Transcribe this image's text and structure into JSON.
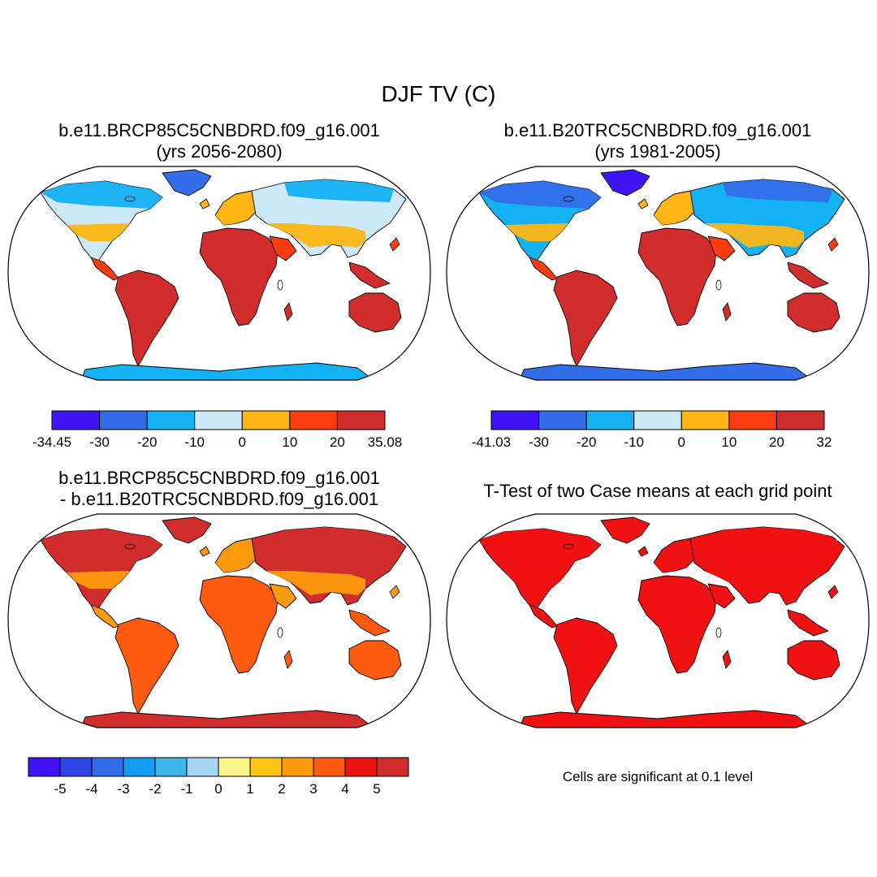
{
  "title": "DJF TV (C)",
  "panels": [
    {
      "id": "p1",
      "title_line1": "b.e11.BRCP85C5CNBDRD.f09_g16.001",
      "title_line2": "(yrs 2056-2080)",
      "colorbar": {
        "colors": [
          "#3f13f5",
          "#336ee8",
          "#14b1f3",
          "#cde9f7",
          "#fdb614",
          "#fd3d0f",
          "#d22d2d"
        ],
        "labels": [
          "-34.45",
          "-30",
          "-20",
          "-10",
          "0",
          "10",
          "20",
          "35.08"
        ],
        "label_mode": "edges"
      },
      "palette": {
        "land_warm": "#d22d2d",
        "tropics": "#fd3d0f",
        "mid": "#fdb614",
        "cold": "#cde9f7",
        "colder": "#14b1f3",
        "coldest": "#336ee8"
      }
    },
    {
      "id": "p2",
      "title_line1": "b.e11.B20TRC5CNBDRD.f09_g16.001",
      "title_line2": "(yrs 1981-2005)",
      "colorbar": {
        "colors": [
          "#3f13f5",
          "#336ee8",
          "#14b1f3",
          "#cde9f7",
          "#fdb614",
          "#fd3d0f",
          "#d22d2d"
        ],
        "labels": [
          "-41.03",
          "-30",
          "-20",
          "-10",
          "0",
          "10",
          "20",
          "32"
        ],
        "label_mode": "edges"
      },
      "palette": {
        "land_warm": "#d22d2d",
        "tropics": "#fd3d0f",
        "mid": "#fdb614",
        "cold": "#14b1f3",
        "colder": "#336ee8",
        "coldest": "#3f13f5"
      }
    },
    {
      "id": "p3",
      "title_line1": "b.e11.BRCP85C5CNBDRD.f09_g16.001",
      "title_line2": "- b.e11.B20TRC5CNBDRD.f09_g16.001",
      "colorbar": {
        "colors": [
          "#3f13f5",
          "#2f45e6",
          "#336ee8",
          "#149ef3",
          "#3fb6ea",
          "#a7d6f2",
          "#fdf58a",
          "#fdc414",
          "#fd9a0e",
          "#fd5b0f",
          "#ea1414",
          "#d22d2d"
        ],
        "labels": [
          "-5",
          "-4",
          "-3",
          "-2",
          "-1",
          "0",
          "1",
          "2",
          "3",
          "4",
          "5"
        ],
        "label_mode": "inner"
      },
      "palette": {
        "land_warm": "#fd5b0f",
        "tropics": "#fd9a0e",
        "mid": "#fd9a0e",
        "cold": "#d22d2d",
        "colder": "#d22d2d",
        "coldest": "#d22d2d"
      }
    },
    {
      "id": "p4",
      "title_line1": "T-Test of two Case means at each grid point",
      "note": "Cells are significant at 0.1 level",
      "palette": {
        "land_warm": "#f01212",
        "tropics": "#f01212",
        "mid": "#f01212",
        "cold": "#f01212",
        "colder": "#f01212",
        "coldest": "#f01212"
      }
    }
  ]
}
